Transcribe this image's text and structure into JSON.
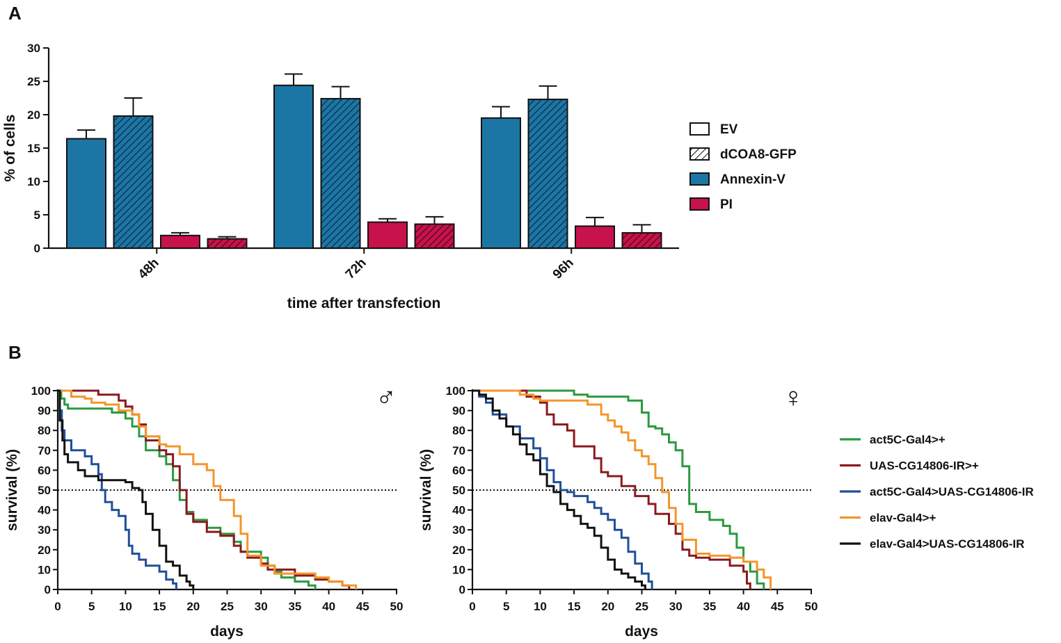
{
  "panel_labels": {
    "a": "A",
    "b": "B"
  },
  "colors": {
    "annexin": "#1c76a5",
    "pi": "#c8124b",
    "axis": "#111111",
    "act5c": "#2a9a3e",
    "uas": "#8a1a1d",
    "act5c_uas": "#1f4f98",
    "elav": "#f5952a",
    "elav_uas": "#111111"
  },
  "chart_data": [
    {
      "type": "bar",
      "panel": "A",
      "title": "",
      "xlabel": "time after transfection",
      "ylabel": "% of cells",
      "ylim": [
        0,
        30
      ],
      "yticks": [
        "0",
        "5",
        "10",
        "15",
        "20",
        "25",
        "30"
      ],
      "categories": [
        "48h",
        "72h",
        "96h"
      ],
      "series": [
        {
          "name": "EV + Annexin-V",
          "stain": "Annexin-V",
          "construct": "EV",
          "values": [
            16.4,
            24.4,
            19.5
          ],
          "errors": [
            1.3,
            1.7,
            1.7
          ]
        },
        {
          "name": "dCOA8-GFP + Annexin-V",
          "stain": "Annexin-V",
          "construct": "dCOA8-GFP",
          "values": [
            19.8,
            22.4,
            22.3
          ],
          "errors": [
            2.7,
            1.8,
            2.0
          ]
        },
        {
          "name": "EV + PI",
          "stain": "PI",
          "construct": "EV",
          "values": [
            1.9,
            3.9,
            3.3
          ],
          "errors": [
            0.4,
            0.5,
            1.3
          ]
        },
        {
          "name": "dCOA8-GFP + PI",
          "stain": "PI",
          "construct": "dCOA8-GFP",
          "values": [
            1.4,
            3.6,
            2.3
          ],
          "errors": [
            0.3,
            1.1,
            1.2
          ]
        }
      ],
      "legend": [
        "EV",
        "dCOA8-GFP",
        "Annexin-V",
        "PI"
      ]
    },
    {
      "type": "line",
      "panel": "B",
      "symbol": "♂",
      "xlabel": "days",
      "ylabel": "survival (%)",
      "xlim": [
        0,
        50
      ],
      "ylim": [
        0,
        100
      ],
      "xticks": [
        "0",
        "5",
        "10",
        "15",
        "20",
        "25",
        "30",
        "35",
        "40",
        "45",
        "50"
      ],
      "yticks": [
        "0",
        "10",
        "20",
        "30",
        "40",
        "50",
        "60",
        "70",
        "80",
        "90",
        "100"
      ],
      "reference_line": 50,
      "series": [
        {
          "name": "act5C-Gal4>+",
          "x": [
            0,
            0.5,
            1,
            1.5,
            5,
            8,
            10,
            11,
            12,
            13,
            15,
            16,
            17,
            18,
            19,
            20,
            22,
            24,
            26,
            27,
            28,
            30,
            31,
            32,
            33,
            35,
            37,
            38
          ],
          "y": [
            100,
            96,
            93,
            91,
            91,
            89,
            86,
            82,
            77,
            70,
            67,
            63,
            55,
            45,
            39,
            35,
            31,
            28,
            24,
            19,
            19,
            16,
            12,
            9,
            6,
            4,
            2,
            0
          ]
        },
        {
          "name": "UAS-CG14806-IR>+",
          "x": [
            0,
            3,
            6,
            9,
            10,
            11,
            12,
            13,
            15,
            16,
            17,
            18,
            19,
            20,
            22,
            24,
            25,
            26,
            27,
            28,
            30,
            31,
            33,
            35,
            38,
            40,
            42,
            43
          ],
          "y": [
            100,
            100,
            98,
            95,
            92,
            88,
            83,
            75,
            70,
            68,
            62,
            50,
            38,
            34,
            29,
            27,
            27,
            22,
            19,
            16,
            13,
            10,
            10,
            7,
            5,
            4,
            2,
            0
          ]
        },
        {
          "name": "act5C-Gal4>UAS-CG14806-IR",
          "x": [
            0,
            0.3,
            0.6,
            1,
            2,
            4,
            5,
            6,
            6.5,
            7,
            8,
            9,
            10,
            10.5,
            11,
            12,
            13,
            14,
            15,
            16,
            17,
            17.5
          ],
          "y": [
            100,
            90,
            80,
            75,
            70,
            67,
            63,
            58,
            50,
            44,
            40,
            37,
            30,
            22,
            18,
            15,
            12,
            12,
            9,
            5,
            3,
            0
          ]
        },
        {
          "name": "elav-Gal4>+",
          "x": [
            0,
            1,
            2,
            4,
            5,
            7,
            9,
            11,
            12,
            13,
            15,
            16,
            18,
            20,
            22,
            23,
            24,
            26,
            27,
            28,
            30,
            32,
            35,
            38,
            40,
            42,
            44
          ],
          "y": [
            100,
            100,
            97,
            96,
            94,
            93,
            90,
            88,
            82,
            77,
            73,
            72,
            68,
            63,
            60,
            52,
            45,
            37,
            28,
            17,
            12,
            8,
            8,
            6,
            4,
            2,
            0
          ]
        },
        {
          "name": "elav-Gal4>UAS-CG14806-IR",
          "x": [
            0,
            0.3,
            0.7,
            1,
            1.5,
            3,
            4,
            6,
            8,
            10,
            11,
            12,
            12.5,
            13,
            14,
            15,
            16,
            17,
            18,
            19,
            19.5,
            20
          ],
          "y": [
            100,
            85,
            75,
            68,
            64,
            60,
            57,
            55,
            55,
            54,
            51,
            50,
            44,
            38,
            30,
            22,
            14,
            12,
            7,
            4,
            2,
            0
          ]
        }
      ]
    },
    {
      "type": "line",
      "panel": "B",
      "symbol": "♀",
      "xlabel": "days",
      "ylabel": "survival (%)",
      "xlim": [
        0,
        50
      ],
      "ylim": [
        0,
        100
      ],
      "xticks": [
        "0",
        "5",
        "10",
        "15",
        "20",
        "25",
        "30",
        "35",
        "40",
        "45",
        "50"
      ],
      "yticks": [
        "0",
        "10",
        "20",
        "30",
        "40",
        "50",
        "60",
        "70",
        "80",
        "90",
        "100"
      ],
      "reference_line": 50,
      "series": [
        {
          "name": "act5C-Gal4>+",
          "x": [
            0,
            12,
            15,
            17,
            20,
            23,
            25,
            26,
            27,
            28,
            29,
            30,
            31,
            32,
            33,
            35,
            37,
            38,
            39,
            40,
            41,
            42,
            43
          ],
          "y": [
            100,
            100,
            98,
            97,
            97,
            95,
            89,
            82,
            81,
            78,
            74,
            70,
            62,
            43,
            39,
            35,
            32,
            28,
            21,
            14,
            9,
            3,
            0
          ]
        },
        {
          "name": "UAS-CG14806-IR>+",
          "x": [
            0,
            6,
            8,
            10,
            11,
            12,
            14,
            15,
            17,
            18,
            19,
            20,
            22,
            24,
            26,
            27,
            29,
            30,
            31,
            32,
            33,
            35,
            38,
            40,
            40.5,
            41
          ],
          "y": [
            100,
            100,
            97,
            94,
            88,
            83,
            80,
            72,
            72,
            66,
            59,
            57,
            52,
            47,
            43,
            38,
            33,
            28,
            20,
            17,
            16,
            15,
            12,
            9,
            3,
            0
          ]
        },
        {
          "name": "act5C-Gal4>UAS-CG14806-IR",
          "x": [
            0,
            1,
            2,
            3,
            5,
            7,
            9,
            10,
            11,
            12,
            13,
            14,
            15,
            17,
            18,
            19,
            20,
            21,
            22,
            23,
            24,
            25,
            26,
            26.5
          ],
          "y": [
            100,
            97,
            94,
            88,
            82,
            76,
            71,
            66,
            60,
            54,
            50,
            49,
            47,
            44,
            41,
            38,
            35,
            30,
            26,
            19,
            13,
            8,
            4,
            0
          ]
        },
        {
          "name": "elav-Gal4>+",
          "x": [
            0,
            6,
            7,
            9,
            10,
            13,
            16,
            17,
            19,
            20,
            21,
            22,
            23,
            24,
            25,
            26,
            27,
            28,
            29,
            30,
            31,
            33,
            35,
            38,
            40,
            42,
            43,
            44
          ],
          "y": [
            100,
            100,
            98,
            96,
            95,
            95,
            95,
            93,
            88,
            85,
            82,
            79,
            75,
            70,
            67,
            63,
            56,
            49,
            41,
            33,
            25,
            18,
            17,
            16,
            14,
            10,
            6,
            0
          ]
        },
        {
          "name": "elav-Gal4>UAS-CG14806-IR",
          "x": [
            0,
            1,
            2,
            3,
            4,
            5,
            6,
            7,
            8,
            9,
            10,
            11,
            12,
            13,
            14,
            15,
            16,
            17,
            18,
            19,
            20,
            21,
            22,
            23,
            24,
            25,
            25.5
          ],
          "y": [
            100,
            98,
            96,
            90,
            86,
            82,
            78,
            73,
            68,
            65,
            58,
            52,
            49,
            43,
            40,
            37,
            33,
            31,
            27,
            21,
            15,
            10,
            8,
            6,
            4,
            2,
            0
          ]
        }
      ],
      "legend": [
        "act5C-Gal4>+",
        "UAS-CG14806-IR>+",
        "act5C-Gal4>UAS-CG14806-IR",
        "elav-Gal4>+",
        "elav-Gal4>UAS-CG14806-IR"
      ]
    }
  ]
}
